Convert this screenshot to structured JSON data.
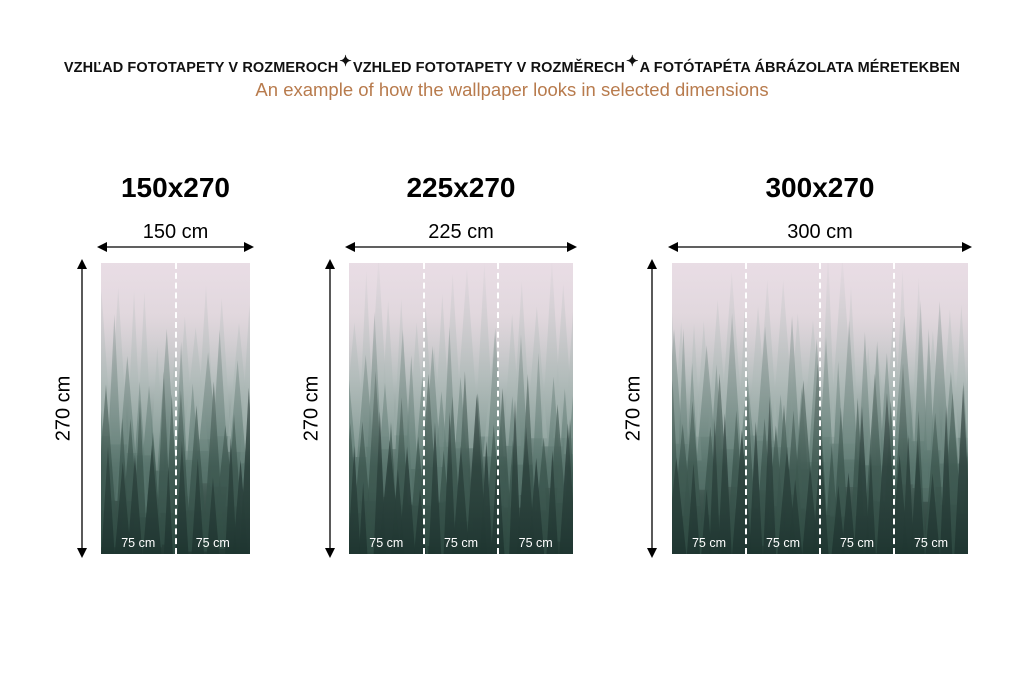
{
  "header": {
    "languages": [
      "VZHĽAD FOTOTAPETY V ROZMEROCH",
      "VZHLED FOTOTAPETY V ROZMĚRECH",
      "A FOTÓTAPÉTA ÁBRÁZOLATA MÉRETEKBEN"
    ],
    "separator_icon": "sparkle-icon",
    "subtitle": "An example of how the wallpaper looks in selected dimensions"
  },
  "colors": {
    "subtitle": "#b87b4d",
    "fog": "#e9dde5",
    "forest": "#233a34"
  },
  "variants": [
    {
      "title": "150x270",
      "width_label": "150 cm",
      "height_label": "270 cm",
      "strips": [
        "75 cm",
        "75 cm"
      ]
    },
    {
      "title": "225x270",
      "width_label": "225 cm",
      "height_label": "270 cm",
      "strips": [
        "75 cm",
        "75 cm",
        "75 cm"
      ]
    },
    {
      "title": "300x270",
      "width_label": "300 cm",
      "height_label": "270 cm",
      "strips": [
        "75 cm",
        "75 cm",
        "75 cm",
        "75 cm"
      ]
    }
  ]
}
